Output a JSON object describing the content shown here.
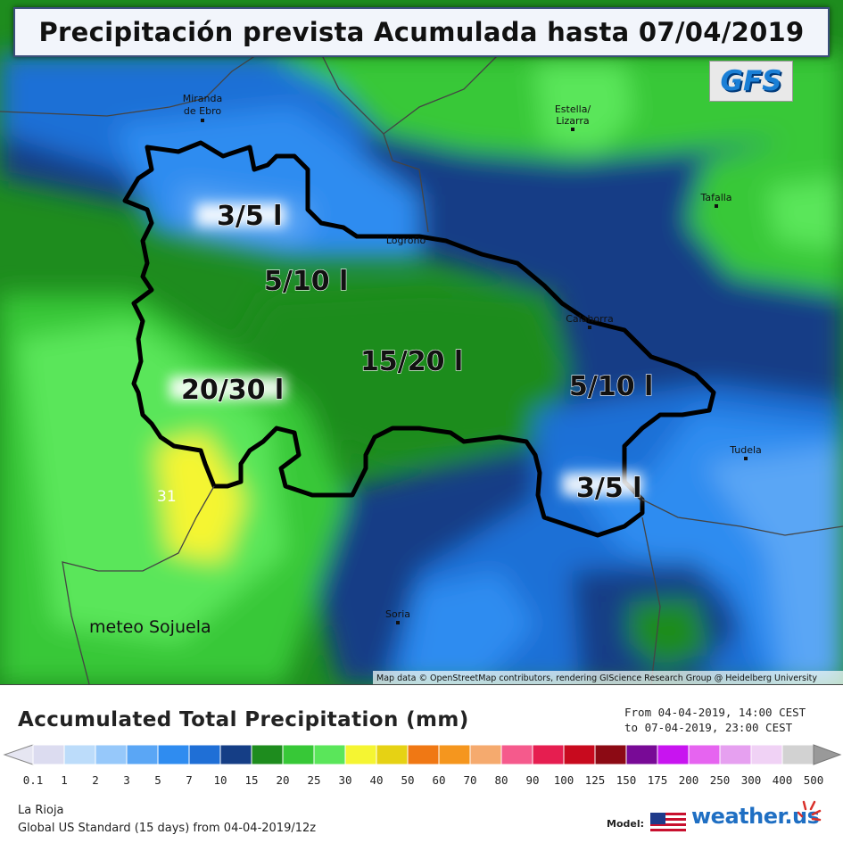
{
  "header": {
    "title": "Precipitación prevista Acumulada hasta 07/04/2019",
    "model_badge": "GFS"
  },
  "map": {
    "cities": [
      "Miranda de Ebro",
      "Estella/ Lizarra",
      "Tafalla",
      "Logroño",
      "Calahorra",
      "Tudela",
      "Soria"
    ],
    "city_lines": {
      "miranda": [
        "Miranda",
        "de Ebro"
      ],
      "estella": [
        "Estella/",
        "Lizarra"
      ]
    },
    "labels": [
      "3/5 l",
      "5/10 l",
      "15/20 l",
      "20/30 l",
      "5/10 l",
      "3/5 l"
    ],
    "point_value": "31",
    "watermark": "meteo Sojuela",
    "attribution": "Map data © OpenStreetMap contributors, rendering GIScience Research Group @ Heidelberg University"
  },
  "legend": {
    "title": "Accumulated Total Precipitation (mm)",
    "range_from": "From 04-04-2019, 14:00 CEST",
    "range_to": "to 07-04-2019, 23:00 CEST",
    "thresholds": [
      "0.1",
      "1",
      "2",
      "3",
      "5",
      "7",
      "10",
      "15",
      "20",
      "25",
      "30",
      "40",
      "50",
      "60",
      "70",
      "80",
      "90",
      "100",
      "125",
      "150",
      "175",
      "200",
      "250",
      "300",
      "400",
      "500"
    ],
    "colors": [
      "#dcdcf0",
      "#bcdcfa",
      "#96c8fa",
      "#5aa6f5",
      "#2f8cf0",
      "#1f6fd6",
      "#153e86",
      "#1e8c1e",
      "#37c837",
      "#5ae65a",
      "#f5f532",
      "#e6d214",
      "#f07814",
      "#f5961e",
      "#f5aa6e",
      "#f55a8c",
      "#e61e50",
      "#c80a1e",
      "#8c0a14",
      "#780a96",
      "#c814f0",
      "#e664f0",
      "#e6a0f0",
      "#f0d2f5",
      "#d2d2d2"
    ],
    "region": "La Rioja",
    "model_line": "Global US Standard (15 days) from 04-04-2019/12z",
    "model_label": "Model:",
    "brand": "weather.us"
  }
}
